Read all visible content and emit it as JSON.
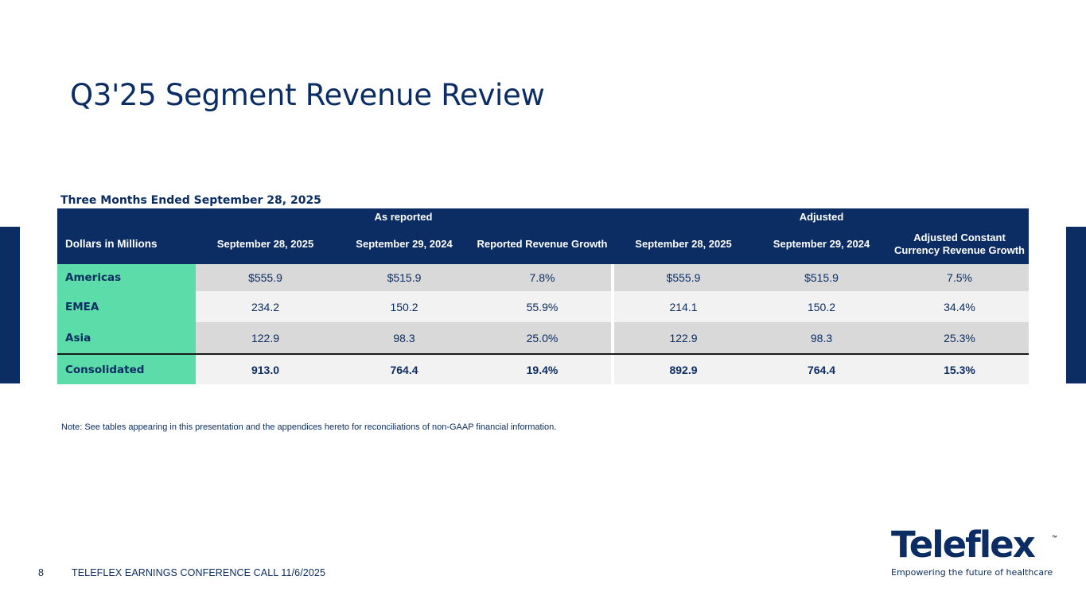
{
  "title": "Q3'25 Segment Revenue Review",
  "table": {
    "caption": "Three Months Ended September 28, 2025",
    "group_headers": {
      "as_reported": "As reported",
      "adjusted": "Adjusted"
    },
    "columns": [
      "Dollars in Millions",
      "September 28, 2025",
      "September 29, 2024",
      "Reported Revenue Growth",
      "September 28, 2025",
      "September 29, 2024",
      "Adjusted Constant Currency Revenue Growth"
    ],
    "rows": [
      {
        "segment": "Americas",
        "values": [
          "$555.9",
          "$515.9",
          "7.8%",
          "$555.9",
          "$515.9",
          "7.5%"
        ]
      },
      {
        "segment": "EMEA",
        "values": [
          "234.2",
          "150.2",
          "55.9%",
          "214.1",
          "150.2",
          "34.4%"
        ]
      },
      {
        "segment": "Asia",
        "values": [
          "122.9",
          "98.3",
          "25.0%",
          "122.9",
          "98.3",
          "25.3%"
        ]
      },
      {
        "segment": "Consolidated",
        "values": [
          "913.0",
          "764.4",
          "19.4%",
          "892.9",
          "764.4",
          "15.3%"
        ]
      }
    ]
  },
  "note": "Note: See tables appearing in this presentation and the appendices hereto for reconciliations of non-GAAP financial information.",
  "footer": {
    "page_number": "8",
    "text": "TELEFLEX EARNINGS CONFERENCE CALL 11/6/2025"
  },
  "logo": {
    "name": "Teleflex",
    "trademark": "™",
    "tagline": "Empowering the future of healthcare"
  },
  "colors": {
    "navy": "#0b2d63",
    "segment_green": "#5cdca8",
    "row_grey": "#d9d9d9",
    "row_light": "#f2f2f2"
  }
}
